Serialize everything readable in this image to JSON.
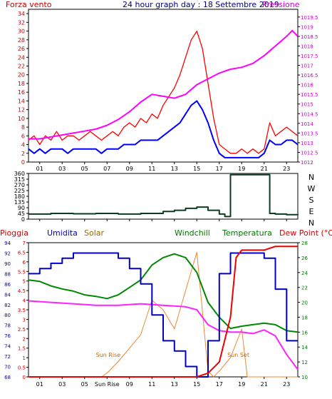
{
  "panel1": {
    "title": "24 hour graph day : 18 Settembre 2019",
    "left_label": "Forza vento",
    "right_label": "Pressione",
    "left_axis": {
      "min": 0,
      "max": 35,
      "ticks": [
        0,
        2,
        4,
        6,
        8,
        10,
        12,
        14,
        16,
        18,
        20,
        22,
        24,
        26,
        28,
        30,
        32,
        34
      ]
    },
    "right_axis": {
      "min": 1012,
      "max": 1019.9,
      "ticks": [
        "1012",
        "1012.5",
        "1013",
        "1013.5",
        "1014",
        "1014.5",
        "1015",
        "1015.5",
        "1016",
        "1016.5",
        "1017",
        "1017.5",
        "1018",
        "1018.5",
        "1019",
        "1019.5"
      ]
    }
  },
  "panel2": {
    "y_ticks": [
      0,
      45,
      90,
      135,
      180,
      225,
      270,
      315,
      360
    ],
    "compass": [
      "N",
      "W",
      "S",
      "E",
      "N"
    ]
  },
  "panel3": {
    "headers": {
      "pioggia": "Pioggia",
      "umidita": "Umidita",
      "solar": "Solar",
      "windchill": "Windchill",
      "temperatura": "Temperatura",
      "dewpoint": "Dew Point (°C)"
    },
    "humidity_ticks": [
      68,
      70,
      72,
      74,
      76,
      78,
      80,
      82,
      84,
      86,
      88,
      90,
      92,
      94
    ],
    "rain_ticks": [
      "0",
      "0.5",
      "1",
      "1.5",
      "2",
      "2.5",
      "3",
      "3.5",
      "4",
      "4.5",
      "5",
      "5.5",
      "6",
      "6.5",
      "7"
    ],
    "temp_ticks": [
      10,
      12,
      14,
      16,
      18,
      20,
      22,
      24,
      26,
      28
    ],
    "annotations": {
      "sunrise": "Sun Rise",
      "sunset": "Sun Set"
    }
  },
  "x_labels": [
    "01",
    "03",
    "05",
    "07",
    "09",
    "11",
    "13",
    "15",
    "17",
    "19",
    "21",
    "23"
  ],
  "x_labels_bottom": [
    "01",
    "03",
    "05",
    "Sun Rise",
    "09",
    "11",
    "13",
    "15",
    "17",
    "19",
    "21",
    "23"
  ],
  "colors": {
    "wind": "#ff0000",
    "windavg": "#0000ff",
    "pressure": "#ff00ff",
    "direction": "#0a3d1f",
    "humidity": "#0000cc",
    "solar": "#ee8833",
    "windchill": "#008800",
    "temperature": "#ee0000",
    "dewpoint": "#ff22ff",
    "left_axis": "#cc0000",
    "right_axis": "#cc00cc",
    "temp_axis": "#007700"
  },
  "chart_data": [
    {
      "type": "line",
      "title": "24 hour graph day : 18 Settembre 2019",
      "x_unit": "hour",
      "series": [
        {
          "name": "Forza vento",
          "axis": "left",
          "values": [
            [
              0,
              5
            ],
            [
              0.5,
              6
            ],
            [
              1,
              4
            ],
            [
              1.5,
              6
            ],
            [
              2,
              5
            ],
            [
              2.5,
              7
            ],
            [
              3,
              5
            ],
            [
              3.5,
              6
            ],
            [
              4,
              6
            ],
            [
              4.5,
              5
            ],
            [
              5,
              6
            ],
            [
              5.5,
              7
            ],
            [
              6,
              6
            ],
            [
              6.5,
              5
            ],
            [
              7,
              6
            ],
            [
              7.5,
              7
            ],
            [
              8,
              6
            ],
            [
              8.5,
              8
            ],
            [
              9,
              9
            ],
            [
              9.5,
              8
            ],
            [
              10,
              10
            ],
            [
              10.5,
              9
            ],
            [
              11,
              11
            ],
            [
              11.5,
              10
            ],
            [
              12,
              13
            ],
            [
              12.5,
              15
            ],
            [
              13,
              17
            ],
            [
              13.5,
              20
            ],
            [
              14,
              24
            ],
            [
              14.5,
              28
            ],
            [
              15,
              30
            ],
            [
              15.5,
              26
            ],
            [
              16,
              18
            ],
            [
              16.5,
              10
            ],
            [
              17,
              4
            ],
            [
              17.5,
              3
            ],
            [
              18,
              2
            ],
            [
              18.5,
              2
            ],
            [
              19,
              3
            ],
            [
              19.5,
              2
            ],
            [
              20,
              3
            ],
            [
              20.5,
              2
            ],
            [
              21,
              3
            ],
            [
              21.5,
              9
            ],
            [
              22,
              6
            ],
            [
              22.5,
              7
            ],
            [
              23,
              8
            ],
            [
              23.5,
              7
            ],
            [
              24,
              6
            ]
          ]
        },
        {
          "name": "",
          "axis": "left",
          "values": [
            [
              0,
              3
            ],
            [
              0.5,
              2
            ],
            [
              1,
              3
            ],
            [
              1.5,
              2
            ],
            [
              2,
              3
            ],
            [
              2.5,
              3
            ],
            [
              3,
              3
            ],
            [
              3.5,
              2
            ],
            [
              4,
              3
            ],
            [
              4.5,
              3
            ],
            [
              5,
              3
            ],
            [
              5.5,
              3
            ],
            [
              6,
              3
            ],
            [
              6.5,
              2
            ],
            [
              7,
              3
            ],
            [
              7.5,
              3
            ],
            [
              8,
              3
            ],
            [
              8.5,
              4
            ],
            [
              9,
              4
            ],
            [
              9.5,
              4
            ],
            [
              10,
              5
            ],
            [
              10.5,
              5
            ],
            [
              11,
              5
            ],
            [
              11.5,
              5
            ],
            [
              12,
              6
            ],
            [
              12.5,
              7
            ],
            [
              13,
              8
            ],
            [
              13.5,
              9
            ],
            [
              14,
              11
            ],
            [
              14.5,
              13
            ],
            [
              15,
              14
            ],
            [
              15.5,
              12
            ],
            [
              16,
              9
            ],
            [
              16.5,
              5
            ],
            [
              17,
              2
            ],
            [
              17.5,
              1
            ],
            [
              18,
              1
            ],
            [
              18.5,
              1
            ],
            [
              19,
              1
            ],
            [
              19.5,
              1
            ],
            [
              20,
              1
            ],
            [
              20.5,
              1
            ],
            [
              21,
              2
            ],
            [
              21.5,
              5
            ],
            [
              22,
              4
            ],
            [
              22.5,
              4
            ],
            [
              23,
              5
            ],
            [
              23.5,
              5
            ],
            [
              24,
              4
            ]
          ]
        },
        {
          "name": "Pressione",
          "axis": "right",
          "values": [
            [
              0,
              1013.2
            ],
            [
              1,
              1013.2
            ],
            [
              2,
              1013.3
            ],
            [
              3,
              1013.4
            ],
            [
              4,
              1013.5
            ],
            [
              5,
              1013.6
            ],
            [
              6,
              1013.7
            ],
            [
              7,
              1013.9
            ],
            [
              8,
              1014.2
            ],
            [
              9,
              1014.6
            ],
            [
              10,
              1015.1
            ],
            [
              11,
              1015.5
            ],
            [
              12,
              1015.4
            ],
            [
              13,
              1015.3
            ],
            [
              14,
              1015.5
            ],
            [
              15,
              1016.0
            ],
            [
              16,
              1016.3
            ],
            [
              17,
              1016.6
            ],
            [
              18,
              1016.8
            ],
            [
              19,
              1016.9
            ],
            [
              20,
              1017.1
            ],
            [
              21,
              1017.5
            ],
            [
              22,
              1018.0
            ],
            [
              23,
              1018.5
            ],
            [
              23.5,
              1018.8
            ],
            [
              24,
              1018.5
            ]
          ]
        }
      ]
    },
    {
      "type": "line",
      "x_unit": "hour",
      "series": [
        {
          "name": "",
          "values": [
            [
              0,
              40
            ],
            [
              2,
              45
            ],
            [
              4,
              42
            ],
            [
              6,
              45
            ],
            [
              8,
              40
            ],
            [
              10,
              45
            ],
            [
              12,
              60
            ],
            [
              13,
              70
            ],
            [
              14,
              85
            ],
            [
              15,
              95
            ],
            [
              16,
              70
            ],
            [
              17,
              40
            ],
            [
              17.5,
              20
            ],
            [
              18,
              350
            ],
            [
              19,
              350
            ],
            [
              20,
              350
            ],
            [
              21,
              350
            ],
            [
              21.5,
              45
            ],
            [
              22,
              40
            ],
            [
              23,
              35
            ],
            [
              24,
              40
            ]
          ]
        }
      ]
    },
    {
      "type": "line",
      "x_unit": "hour",
      "series": [
        {
          "name": "Umidita",
          "axis": "humidity",
          "values": [
            [
              0,
              88
            ],
            [
              1,
              89
            ],
            [
              2,
              90
            ],
            [
              3,
              91
            ],
            [
              4,
              92
            ],
            [
              5,
              92
            ],
            [
              6,
              92
            ],
            [
              7,
              92
            ],
            [
              8,
              91
            ],
            [
              9,
              89
            ],
            [
              10,
              86
            ],
            [
              11,
              80
            ],
            [
              12,
              75
            ],
            [
              13,
              73
            ],
            [
              14,
              70
            ],
            [
              15,
              68
            ],
            [
              16,
              75
            ],
            [
              17,
              88
            ],
            [
              18,
              92
            ],
            [
              19,
              92
            ],
            [
              20,
              92
            ],
            [
              21,
              91
            ],
            [
              22,
              85
            ],
            [
              23,
              75
            ],
            [
              24,
              75
            ]
          ]
        },
        {
          "name": "Solar",
          "axis": "rain",
          "values": [
            [
              0,
              0
            ],
            [
              6.5,
              0
            ],
            [
              7,
              0.2
            ],
            [
              8,
              0.8
            ],
            [
              9,
              1.5
            ],
            [
              10,
              2.2
            ],
            [
              11,
              4
            ],
            [
              12,
              3.5
            ],
            [
              13,
              2.5
            ],
            [
              14,
              4.5
            ],
            [
              15,
              6.5
            ],
            [
              16,
              0.3
            ],
            [
              16.5,
              0
            ],
            [
              17,
              0.3
            ],
            [
              18,
              1.0
            ],
            [
              19,
              2.5
            ],
            [
              19.5,
              0
            ],
            [
              24,
              0
            ]
          ]
        },
        {
          "name": "Windchill",
          "axis": "temp",
          "values": [
            [
              0,
              23
            ],
            [
              1,
              22.8
            ],
            [
              2,
              22.2
            ],
            [
              3,
              21.8
            ],
            [
              4,
              21.5
            ],
            [
              5,
              21
            ],
            [
              6,
              20.8
            ],
            [
              7,
              20.5
            ],
            [
              8,
              21
            ],
            [
              9,
              22
            ],
            [
              10,
              23
            ],
            [
              11,
              25
            ],
            [
              12,
              26
            ],
            [
              13,
              26.5
            ],
            [
              14,
              26
            ],
            [
              15,
              24
            ],
            [
              16,
              20
            ],
            [
              17,
              18
            ],
            [
              18,
              16.5
            ],
            [
              19,
              16.8
            ],
            [
              20,
              17
            ],
            [
              21,
              17.2
            ],
            [
              22,
              17
            ],
            [
              23,
              16.2
            ],
            [
              24,
              16
            ]
          ]
        },
        {
          "name": "Temperatura",
          "axis": "temp",
          "values": [
            [
              0,
              10
            ],
            [
              15,
              10
            ],
            [
              16,
              10.5
            ],
            [
              17,
              12
            ],
            [
              18,
              18
            ],
            [
              18.5,
              26
            ],
            [
              19,
              27
            ],
            [
              20,
              27
            ],
            [
              21,
              27
            ],
            [
              22,
              27.5
            ],
            [
              23,
              27.5
            ],
            [
              24,
              27.5
            ]
          ]
        },
        {
          "name": "Dew Point (°C)",
          "axis": "temp",
          "values": [
            [
              0,
              20.2
            ],
            [
              2,
              20
            ],
            [
              4,
              19.8
            ],
            [
              6,
              19.6
            ],
            [
              8,
              19.6
            ],
            [
              10,
              19.8
            ],
            [
              12,
              19.6
            ],
            [
              14,
              19.4
            ],
            [
              15,
              19
            ],
            [
              16,
              17
            ],
            [
              17,
              16.2
            ],
            [
              18,
              16
            ],
            [
              19,
              16
            ],
            [
              20,
              15.8
            ],
            [
              21,
              16.3
            ],
            [
              22,
              15.5
            ],
            [
              23,
              13
            ],
            [
              24,
              11
            ]
          ]
        }
      ]
    }
  ]
}
